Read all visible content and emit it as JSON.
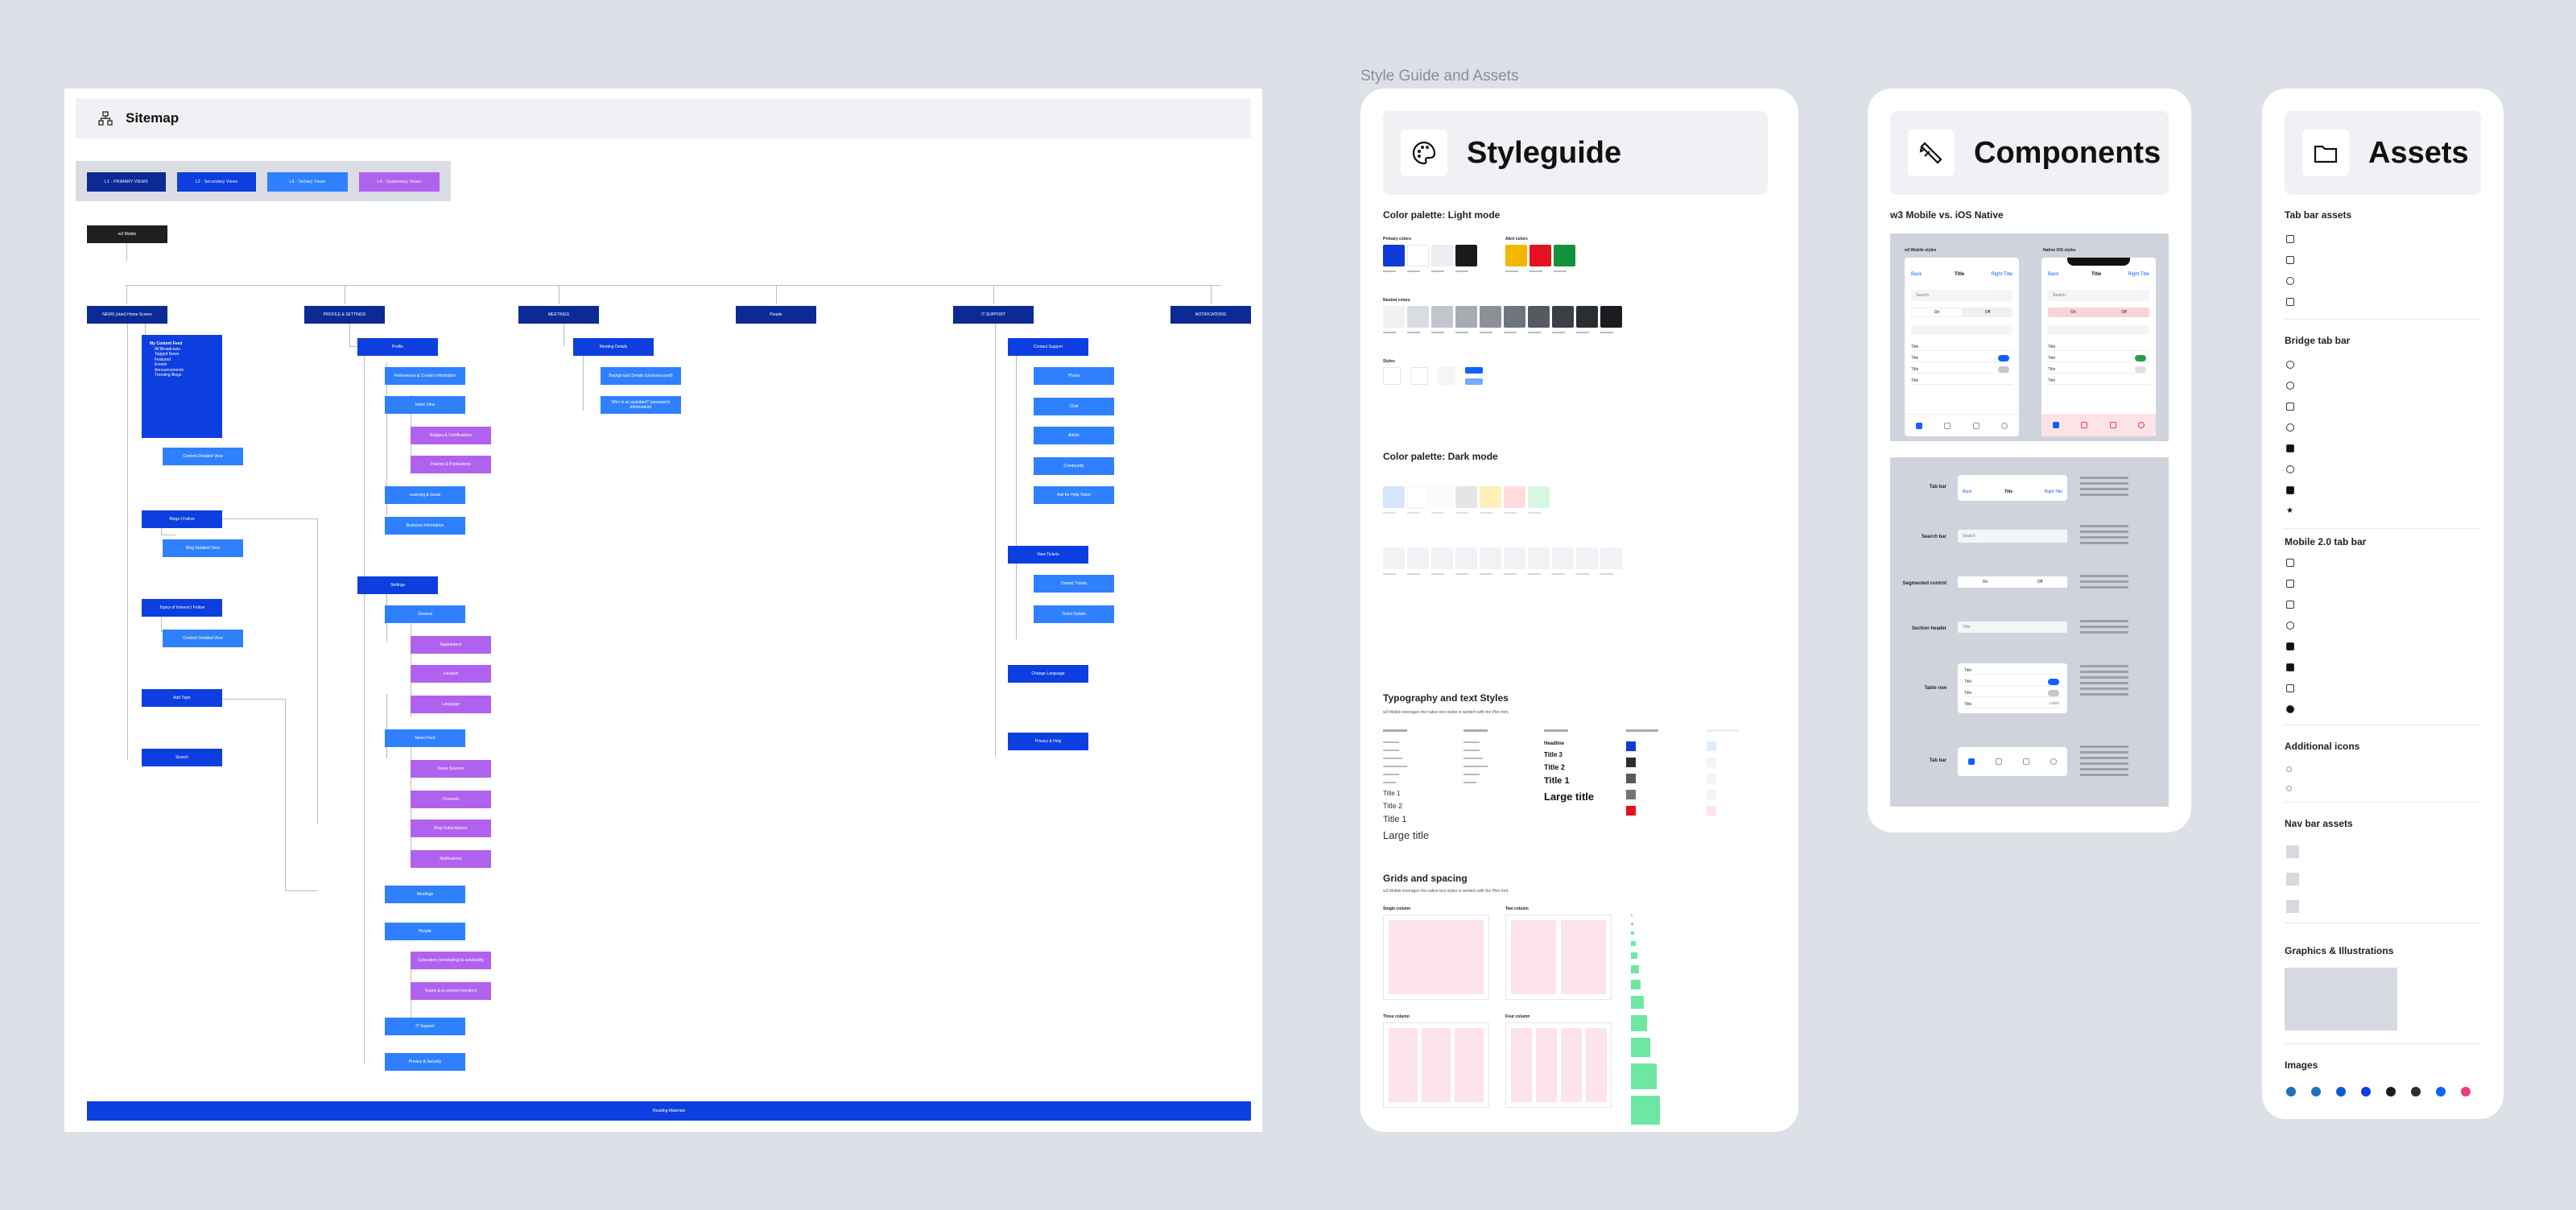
{
  "sitemap": {
    "title": "Sitemap",
    "legend": [
      "L1 - PRIMARY VIEWS",
      "L2 - Secondary Views",
      "L3 - Tertiary Views",
      "L4 - Quaternary Views"
    ],
    "root": "w3 Mobile",
    "level1": [
      "NEWS (start) Home Screen",
      "PROFILE & SETTINGS",
      "MEETINGS",
      "People",
      "IT SUPPORT",
      "NOTIFICATIONS"
    ],
    "news": {
      "feed": "My Content Feed",
      "feed_items": [
        "All Broadcasts",
        "Tagged News",
        "Featured",
        "Events",
        "Announcements",
        "Trending Blogs"
      ],
      "content_detail": "Content Detailed View",
      "blogs_follow": "Blogs I Follow",
      "blog_detail": "Blog Detailed View",
      "topics": "Topics of Interest I Follow",
      "content_detail_2": "Content Detailed View",
      "add_topic": "Add Topic",
      "search": "Search"
    },
    "profile": {
      "profile": "Profile",
      "preferences": "Preferences & Contact Information",
      "inbox_view": "Inbox View",
      "badges": "Badges & Certifications",
      "patents": "Patents & Publications",
      "learning": "Learning & Goals",
      "business": "Business Information",
      "settings": "Settings",
      "general": "General",
      "appearance": "Appearance",
      "location": "Location",
      "language": "Language",
      "newsfeed": "News Feed",
      "news_sources": "News Sources",
      "channels": "Channels",
      "blog_subs": "Blog Subscriptions",
      "notifications": "Notifications",
      "meetings": "Meetings",
      "people": "People",
      "ppl1": "Colocation (scheduling) & availability",
      "ppl2": "Teams & in-context (mention)",
      "it_support": "IT Support",
      "privacy": "Privacy & Security"
    },
    "meetings": {
      "details": "Meeting Details",
      "background": "Background Details (Unannounced)",
      "who": "Who is an assistant? (assistant's information)"
    },
    "it": {
      "contact": "Contact Support",
      "items": [
        "Phone",
        "Chat",
        "Article",
        "Community",
        "Ask for Help Ticket"
      ],
      "view_tickets": "View Tickets",
      "open_tickets": "Closed Tickets",
      "ticket_details": "Ticket Details",
      "change_language": "Change Language",
      "privacy_help": "Privacy & Help"
    },
    "footer": "Reading Materials"
  },
  "section_title": "Style Guide and Assets",
  "styleguide": {
    "title": "Styleguide",
    "palette_light": "Color palette: Light mode",
    "palette_dark": "Color palette: Dark mode",
    "primary_colors": "Primary colors",
    "alert_colors": "Alert colors",
    "neutral_colors": "Neutral colors",
    "styles_label": "Styles",
    "typography": "Typography and text Styles",
    "typography_sub": "w3 Mobile leverages the native text styles in tandem with the Plex font.",
    "type_samples": [
      "Title 1",
      "Title 2",
      "Title 1",
      "Large title"
    ],
    "type_samples_2": [
      "Headline",
      "Title 3",
      "Title 2",
      "Title 1",
      "Large title"
    ],
    "grids": "Grids and spacing",
    "grids_sub": "w3 Mobile leverages the native text styles in tandem with the Plex font.",
    "grid_labels": [
      "Single column",
      "Two column",
      "Three column",
      "Four column"
    ],
    "colors": {
      "primary": [
        "#0f3bd9",
        "#ffffff",
        "#eceff3",
        "#1a1a1a"
      ],
      "alert": [
        "#f3b700",
        "#e3121f",
        "#12923b"
      ],
      "neutral": [
        "#f0f1f3",
        "#d9dce1",
        "#c2c6cc",
        "#a6abb2",
        "#8b9098",
        "#6f757d",
        "#555a61",
        "#3c4046",
        "#2a2d31",
        "#1a1c1f"
      ]
    }
  },
  "components": {
    "title": "Components",
    "subtitle": "w3 Mobile vs. iOS Native",
    "left_phone_label": "w3 Mobile styles",
    "right_phone_label": "Native iOS styles",
    "nav_back": "Back",
    "nav_title": "Title",
    "nav_right": "Right Title",
    "search_placeholder": "Search",
    "seg_on": "On",
    "seg_off": "Off",
    "row_title": "Title",
    "row_label": "Label",
    "rows": [
      "Tab bar",
      "Search bar",
      "Segmented control",
      "Section header",
      "Table row",
      "Tab bar"
    ]
  },
  "assets": {
    "title": "Assets",
    "sections": [
      "Tab bar assets",
      "Bridge tab bar",
      "Mobile 2.0 tab bar",
      "Additional icons",
      "Nav bar assets",
      "Graphics & Illustrations",
      "Images"
    ],
    "image_colors": [
      "#1f70c1",
      "#1f70c1",
      "#0a5bd8",
      "#0d3ee0",
      "#1a1c1f",
      "#2a2d31",
      "#0f62fe",
      "#e83d84"
    ]
  }
}
